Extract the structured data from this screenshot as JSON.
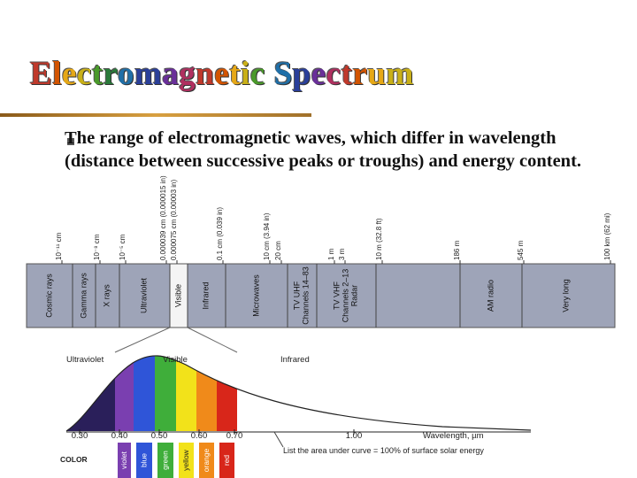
{
  "title": "Electromagnetic Spectrum",
  "bullet": "The range of electromagnetic waves, which differ in wavelength (distance between successive peaks or troughs) and energy content.",
  "spectrum": {
    "bands": [
      [
        "Cosmic rays"
      ],
      [
        "Gamma rays"
      ],
      [
        "X rays"
      ],
      [
        "Ultraviolet"
      ],
      [
        "Visible"
      ],
      [
        "Infrared"
      ],
      [
        "Microwaves"
      ],
      [
        "TV UHF",
        "Channels 14–83"
      ],
      [
        "TV VHF",
        "Channels 2–13",
        "Radar"
      ],
      [
        "AM radio"
      ],
      [
        "Very long"
      ]
    ],
    "wavelengths": [
      "10⁻¹¹ cm",
      "10⁻⁸ cm",
      "10⁻⁵ cm",
      "0.000039 cm (0.000015 in)",
      "0.000075 cm (0.00003 in)",
      "0.1 cm (0.039 in)",
      "10 cm (3.94 in)",
      "20 cm",
      "1 m",
      "3 m",
      "10 m (32.8 ft)",
      "186 m",
      "545 m",
      "100 km (62 mi)"
    ]
  },
  "solar_curve": {
    "regions": [
      "Ultraviolet",
      "Visible",
      "Infrared"
    ],
    "ticks": [
      "0.30",
      "0.40",
      "0.50",
      "0.60",
      "0.70",
      "1.00"
    ],
    "axis_label": "Wavelength, µm",
    "color_heading": "COLOR",
    "colors": [
      "violet",
      "blue",
      "green",
      "yellow",
      "orange",
      "red"
    ],
    "caption": "List the area under curve = 100% of surface solar energy"
  }
}
